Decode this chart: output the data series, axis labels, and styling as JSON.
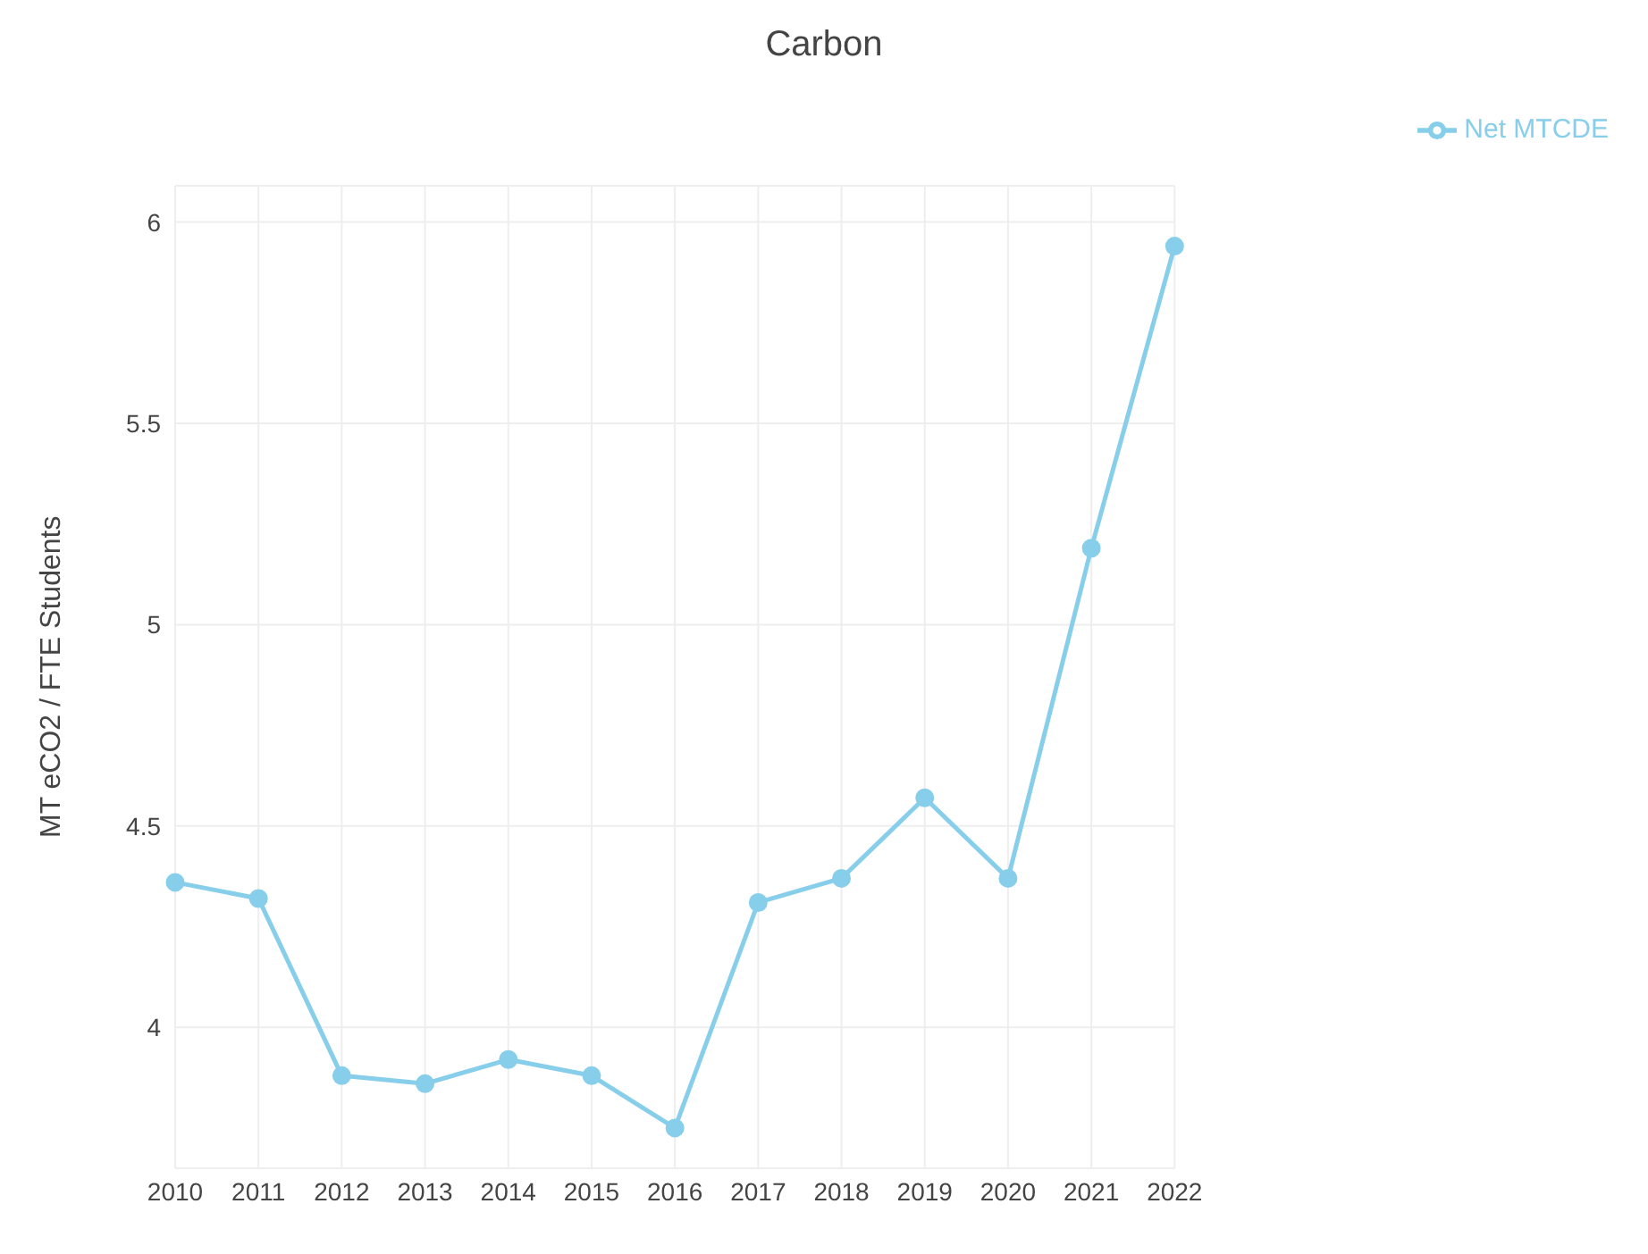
{
  "chart_data": {
    "type": "line",
    "title": "Carbon",
    "ylabel": "MT eCO2 / FTE Students",
    "categories": [
      "2010",
      "2011",
      "2012",
      "2013",
      "2014",
      "2015",
      "2016",
      "2017",
      "2018",
      "2019",
      "2020",
      "2021",
      "2022"
    ],
    "series": [
      {
        "name": "Net MTCDE",
        "color": "#87ceeb",
        "values": [
          4.36,
          4.32,
          3.88,
          3.86,
          3.92,
          3.88,
          3.75,
          4.31,
          4.37,
          4.57,
          4.37,
          5.19,
          5.94
        ]
      }
    ],
    "ylim": [
      3.65,
      6.09
    ],
    "yticks": [
      4,
      4.5,
      5,
      5.5,
      6
    ],
    "grid": true,
    "legend": "top right",
    "marker": "circle",
    "line_style": "solid"
  }
}
